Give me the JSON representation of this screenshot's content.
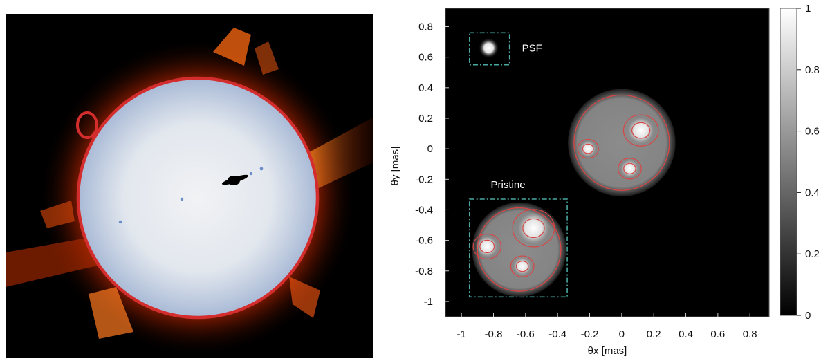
{
  "left_figure": {
    "colors": {
      "background": "#000000",
      "disk_outline": "#d42d2d",
      "disk_edge": "#a9bad6",
      "disk_center": "#f1f2f4",
      "planet": "#000000",
      "moons": "#6a8cc8"
    },
    "icons": [
      "sun-corona-image",
      "saturn-silhouette-icon",
      "moon-dot-icon"
    ]
  },
  "chart_data": {
    "type": "heatmap",
    "title": "",
    "xlabel": "θx [mas]",
    "ylabel": "θy [mas]",
    "xlim": [
      -1.1,
      0.92
    ],
    "ylim": [
      -1.1,
      0.92
    ],
    "xticks": [
      "-1",
      "-0.8",
      "-0.6",
      "-0.4",
      "-0.2",
      "0",
      "0.2",
      "0.4",
      "0.6",
      "0.8"
    ],
    "yticks": [
      "0.8",
      "0.6",
      "0.4",
      "0.2",
      "0",
      "-0.2",
      "-0.4",
      "-0.6",
      "-0.8",
      "-1"
    ],
    "colorbar": {
      "min": 0,
      "max": 1,
      "ticks": [
        "1",
        "0.8",
        "0.6",
        "0.4",
        "0.2",
        "0"
      ],
      "colormap": "grayscale"
    },
    "annotations": [
      "PSF",
      "Pristine"
    ],
    "grid": false,
    "colors": {
      "background": "#000000",
      "contour": "#d94545",
      "box": "#4aa8a0"
    },
    "objects": [
      {
        "name": "PSF",
        "center": [
          -0.83,
          0.66
        ],
        "radius": 0.04,
        "box": [
          -0.95,
          0.76,
          -0.7,
          0.55
        ]
      },
      {
        "name": "reconstructed",
        "center": [
          0.0,
          0.04
        ],
        "radius": 0.32,
        "spots": [
          {
            "center": [
              0.12,
              0.12
            ],
            "radius": 0.075
          },
          {
            "center": [
              -0.21,
              0.0
            ],
            "radius": 0.045
          },
          {
            "center": [
              0.05,
              -0.13
            ],
            "radius": 0.05
          }
        ]
      },
      {
        "name": "Pristine",
        "center": [
          -0.64,
          -0.66
        ],
        "radius": 0.28,
        "box": [
          -0.95,
          -0.33,
          -0.34,
          -0.97
        ],
        "spots": [
          {
            "center": [
              -0.55,
              -0.52
            ],
            "radius": 0.09
          },
          {
            "center": [
              -0.84,
              -0.64
            ],
            "radius": 0.06
          },
          {
            "center": [
              -0.62,
              -0.77
            ],
            "radius": 0.05
          }
        ]
      }
    ]
  }
}
